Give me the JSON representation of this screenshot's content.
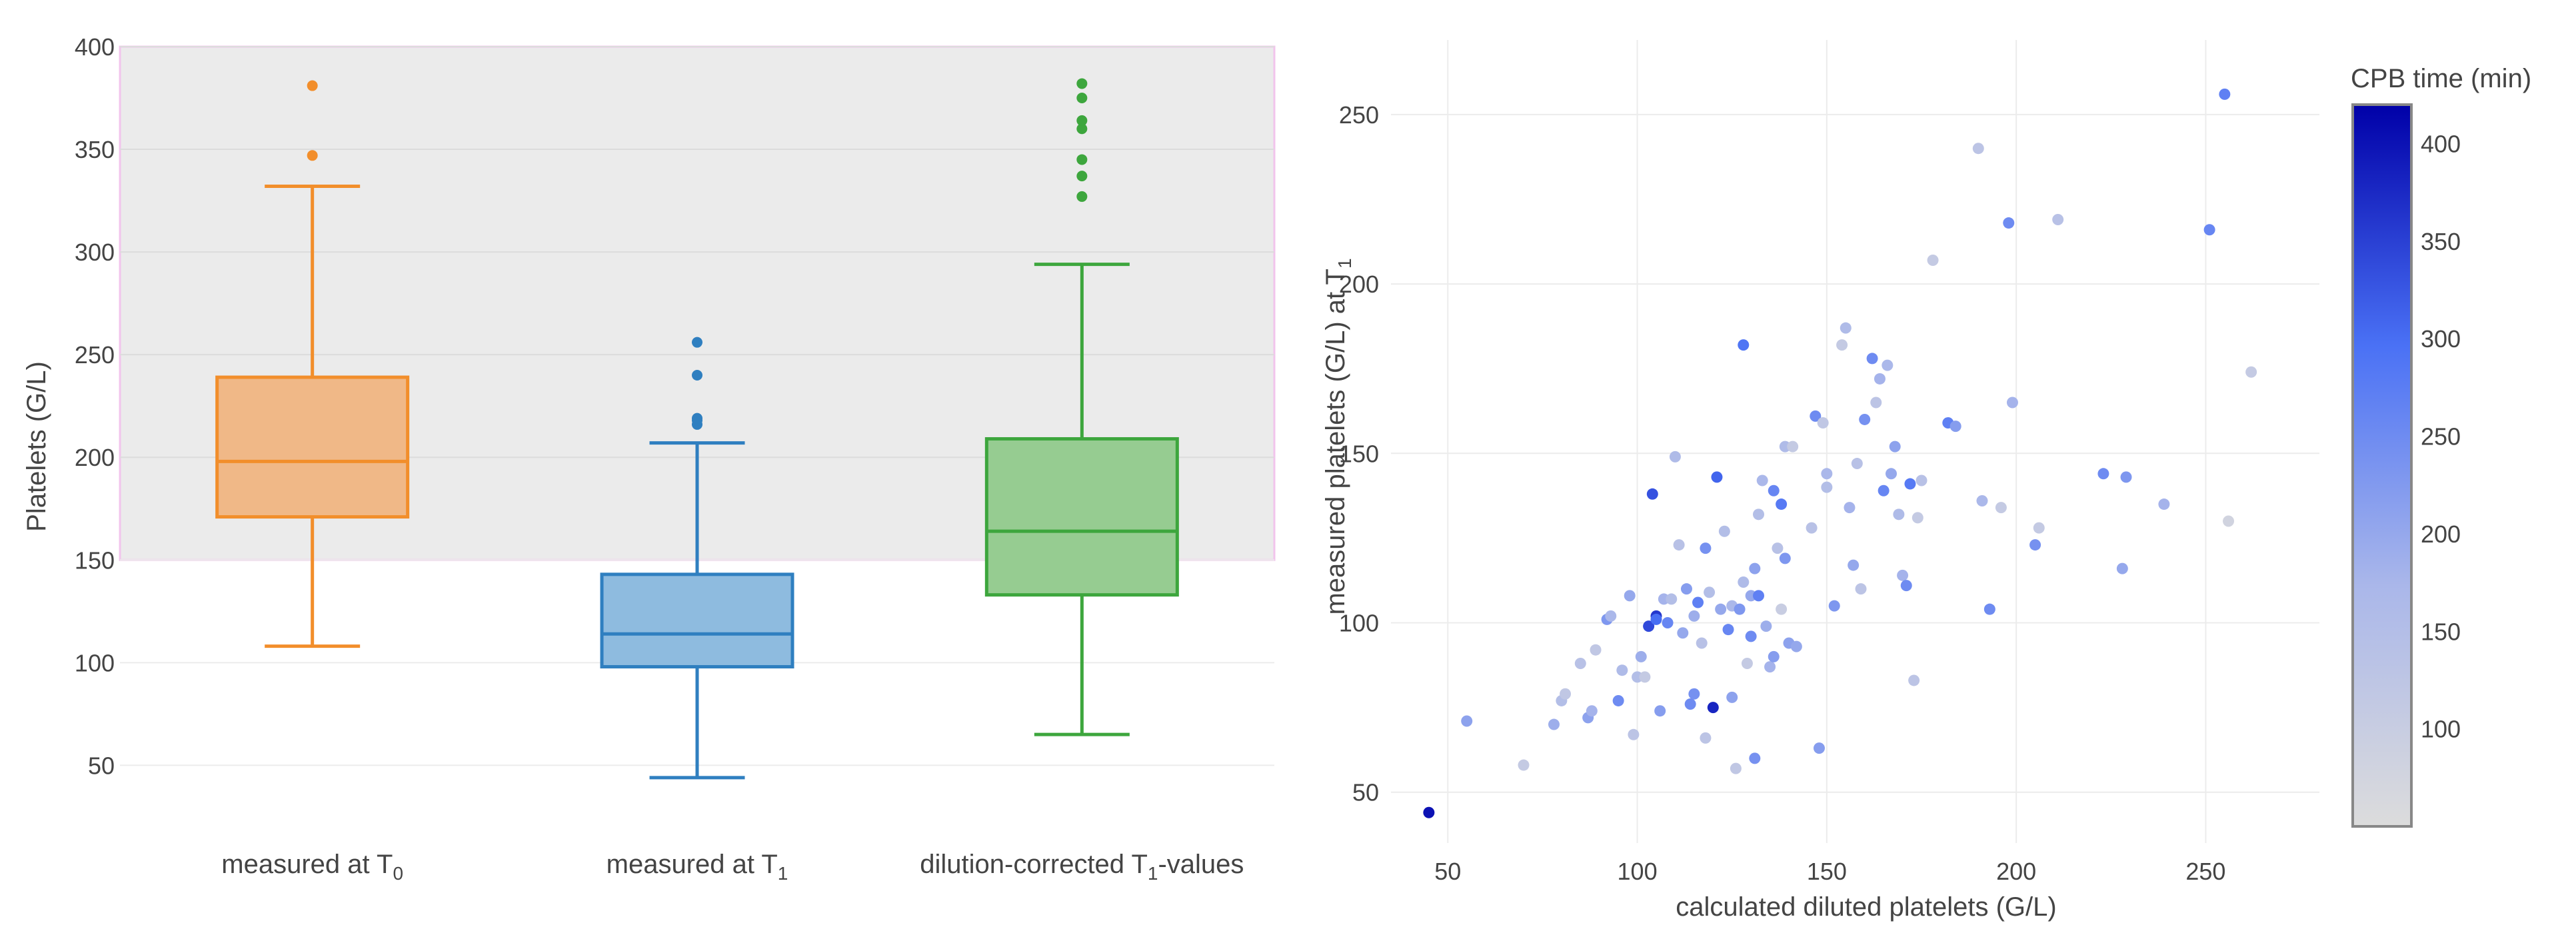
{
  "chart_data": [
    {
      "type": "box",
      "ylabel": "Platelets (G/L)",
      "ylim": [
        30,
        400
      ],
      "yticks": [
        50,
        100,
        150,
        200,
        250,
        300,
        350,
        400
      ],
      "grid": true,
      "shaded_band": {
        "y_from": 150,
        "y_to": 400,
        "color": "#ebebeb",
        "border_color": "#f2c4ec"
      },
      "series": [
        {
          "label_base": "measured at T",
          "label_sub": "0",
          "label_rest": "",
          "color": "#f28e2b",
          "fill": "#f0b887",
          "min": 108,
          "q1": 171,
          "median": 198,
          "q3": 239,
          "max": 332,
          "outliers": [
            347,
            381
          ]
        },
        {
          "label_base": "measured at T",
          "label_sub": "1",
          "label_rest": "",
          "color": "#2f7fc0",
          "fill": "#8ebbdf",
          "min": 44,
          "q1": 98,
          "median": 114,
          "q3": 143,
          "max": 207,
          "outliers": [
            216,
            218,
            219,
            240,
            256
          ]
        },
        {
          "label_base": "dilution-corrected T",
          "label_sub": "1",
          "label_rest": "-values",
          "color": "#3da63d",
          "fill": "#96cc91",
          "min": 65,
          "q1": 133,
          "median": 164,
          "q3": 209,
          "max": 294,
          "outliers": [
            327,
            337,
            345,
            360,
            364,
            375,
            382
          ]
        }
      ]
    },
    {
      "type": "scatter",
      "xlabel": "calculated diluted platelets (G/L)",
      "ylabel_base": "measured platelets (G/L) at T",
      "ylabel_sub": "1",
      "xlim": [
        35,
        280
      ],
      "ylim": [
        35,
        272
      ],
      "xticks": [
        50,
        100,
        150,
        200,
        250
      ],
      "yticks": [
        50,
        100,
        150,
        200,
        250
      ],
      "grid": true,
      "colorbar": {
        "title": "CPB time (min)",
        "range": [
          50,
          420
        ],
        "ticks": [
          100,
          150,
          200,
          250,
          300,
          350,
          400
        ],
        "colors": [
          "#dcdcdc",
          "#aab7ea",
          "#4a71f5",
          "#0000a8"
        ]
      },
      "points": [
        {
          "x": 45,
          "y": 44,
          "c": 400
        },
        {
          "x": 55,
          "y": 71,
          "c": 210
        },
        {
          "x": 70,
          "y": 58,
          "c": 110
        },
        {
          "x": 78,
          "y": 70,
          "c": 190
        },
        {
          "x": 80,
          "y": 77,
          "c": 150
        },
        {
          "x": 81,
          "y": 79,
          "c": 120
        },
        {
          "x": 85,
          "y": 88,
          "c": 140
        },
        {
          "x": 87,
          "y": 72,
          "c": 210
        },
        {
          "x": 88,
          "y": 74,
          "c": 180
        },
        {
          "x": 89,
          "y": 92,
          "c": 120
        },
        {
          "x": 92,
          "y": 101,
          "c": 230
        },
        {
          "x": 93,
          "y": 102,
          "c": 170
        },
        {
          "x": 95,
          "y": 77,
          "c": 250
        },
        {
          "x": 96,
          "y": 86,
          "c": 160
        },
        {
          "x": 98,
          "y": 108,
          "c": 200
        },
        {
          "x": 99,
          "y": 67,
          "c": 130
        },
        {
          "x": 100,
          "y": 84,
          "c": 150
        },
        {
          "x": 101,
          "y": 90,
          "c": 190
        },
        {
          "x": 102,
          "y": 84,
          "c": 110
        },
        {
          "x": 103,
          "y": 99,
          "c": 340
        },
        {
          "x": 104,
          "y": 138,
          "c": 330
        },
        {
          "x": 105,
          "y": 102,
          "c": 360
        },
        {
          "x": 105,
          "y": 101,
          "c": 300
        },
        {
          "x": 106,
          "y": 74,
          "c": 220
        },
        {
          "x": 107,
          "y": 107,
          "c": 180
        },
        {
          "x": 108,
          "y": 100,
          "c": 260
        },
        {
          "x": 109,
          "y": 107,
          "c": 150
        },
        {
          "x": 110,
          "y": 149,
          "c": 160
        },
        {
          "x": 111,
          "y": 123,
          "c": 140
        },
        {
          "x": 112,
          "y": 97,
          "c": 200
        },
        {
          "x": 113,
          "y": 110,
          "c": 220
        },
        {
          "x": 114,
          "y": 76,
          "c": 250
        },
        {
          "x": 115,
          "y": 79,
          "c": 240
        },
        {
          "x": 115,
          "y": 102,
          "c": 190
        },
        {
          "x": 116,
          "y": 106,
          "c": 270
        },
        {
          "x": 117,
          "y": 94,
          "c": 140
        },
        {
          "x": 118,
          "y": 122,
          "c": 240
        },
        {
          "x": 118,
          "y": 66,
          "c": 130
        },
        {
          "x": 119,
          "y": 109,
          "c": 150
        },
        {
          "x": 120,
          "y": 75,
          "c": 380
        },
        {
          "x": 121,
          "y": 143,
          "c": 310
        },
        {
          "x": 122,
          "y": 104,
          "c": 200
        },
        {
          "x": 123,
          "y": 127,
          "c": 150
        },
        {
          "x": 124,
          "y": 98,
          "c": 260
        },
        {
          "x": 125,
          "y": 78,
          "c": 210
        },
        {
          "x": 125,
          "y": 105,
          "c": 170
        },
        {
          "x": 126,
          "y": 57,
          "c": 120
        },
        {
          "x": 127,
          "y": 104,
          "c": 230
        },
        {
          "x": 128,
          "y": 112,
          "c": 160
        },
        {
          "x": 128,
          "y": 182,
          "c": 290
        },
        {
          "x": 129,
          "y": 88,
          "c": 110
        },
        {
          "x": 130,
          "y": 96,
          "c": 250
        },
        {
          "x": 130,
          "y": 108,
          "c": 200
        },
        {
          "x": 131,
          "y": 60,
          "c": 240
        },
        {
          "x": 131,
          "y": 116,
          "c": 210
        },
        {
          "x": 132,
          "y": 108,
          "c": 270
        },
        {
          "x": 132,
          "y": 132,
          "c": 150
        },
        {
          "x": 133,
          "y": 142,
          "c": 170
        },
        {
          "x": 134,
          "y": 99,
          "c": 190
        },
        {
          "x": 135,
          "y": 87,
          "c": 180
        },
        {
          "x": 136,
          "y": 90,
          "c": 220
        },
        {
          "x": 136,
          "y": 139,
          "c": 260
        },
        {
          "x": 137,
          "y": 122,
          "c": 140
        },
        {
          "x": 138,
          "y": 135,
          "c": 280
        },
        {
          "x": 138,
          "y": 104,
          "c": 100
        },
        {
          "x": 139,
          "y": 152,
          "c": 160
        },
        {
          "x": 139,
          "y": 119,
          "c": 230
        },
        {
          "x": 140,
          "y": 94,
          "c": 210
        },
        {
          "x": 141,
          "y": 152,
          "c": 110
        },
        {
          "x": 142,
          "y": 93,
          "c": 200
        },
        {
          "x": 146,
          "y": 128,
          "c": 140
        },
        {
          "x": 147,
          "y": 161,
          "c": 250
        },
        {
          "x": 148,
          "y": 63,
          "c": 220
        },
        {
          "x": 149,
          "y": 159,
          "c": 120
        },
        {
          "x": 150,
          "y": 144,
          "c": 170
        },
        {
          "x": 150,
          "y": 140,
          "c": 150
        },
        {
          "x": 152,
          "y": 105,
          "c": 230
        },
        {
          "x": 154,
          "y": 182,
          "c": 110
        },
        {
          "x": 155,
          "y": 187,
          "c": 160
        },
        {
          "x": 156,
          "y": 134,
          "c": 180
        },
        {
          "x": 157,
          "y": 117,
          "c": 200
        },
        {
          "x": 158,
          "y": 147,
          "c": 140
        },
        {
          "x": 159,
          "y": 110,
          "c": 130
        },
        {
          "x": 160,
          "y": 160,
          "c": 240
        },
        {
          "x": 162,
          "y": 178,
          "c": 250
        },
        {
          "x": 163,
          "y": 165,
          "c": 130
        },
        {
          "x": 164,
          "y": 172,
          "c": 180
        },
        {
          "x": 165,
          "y": 139,
          "c": 260
        },
        {
          "x": 166,
          "y": 176,
          "c": 170
        },
        {
          "x": 167,
          "y": 144,
          "c": 200
        },
        {
          "x": 168,
          "y": 152,
          "c": 210
        },
        {
          "x": 169,
          "y": 132,
          "c": 160
        },
        {
          "x": 170,
          "y": 114,
          "c": 180
        },
        {
          "x": 171,
          "y": 111,
          "c": 250
        },
        {
          "x": 172,
          "y": 141,
          "c": 280
        },
        {
          "x": 173,
          "y": 83,
          "c": 130
        },
        {
          "x": 174,
          "y": 131,
          "c": 110
        },
        {
          "x": 175,
          "y": 142,
          "c": 140
        },
        {
          "x": 178,
          "y": 207,
          "c": 110
        },
        {
          "x": 182,
          "y": 159,
          "c": 270
        },
        {
          "x": 184,
          "y": 158,
          "c": 220
        },
        {
          "x": 190,
          "y": 240,
          "c": 130
        },
        {
          "x": 191,
          "y": 136,
          "c": 170
        },
        {
          "x": 193,
          "y": 104,
          "c": 250
        },
        {
          "x": 196,
          "y": 134,
          "c": 110
        },
        {
          "x": 198,
          "y": 218,
          "c": 250
        },
        {
          "x": 199,
          "y": 165,
          "c": 180
        },
        {
          "x": 205,
          "y": 123,
          "c": 240
        },
        {
          "x": 206,
          "y": 128,
          "c": 110
        },
        {
          "x": 211,
          "y": 219,
          "c": 140
        },
        {
          "x": 223,
          "y": 144,
          "c": 250
        },
        {
          "x": 228,
          "y": 116,
          "c": 200
        },
        {
          "x": 229,
          "y": 143,
          "c": 230
        },
        {
          "x": 239,
          "y": 135,
          "c": 180
        },
        {
          "x": 251,
          "y": 216,
          "c": 260
        },
        {
          "x": 255,
          "y": 256,
          "c": 270
        },
        {
          "x": 256,
          "y": 130,
          "c": 80
        },
        {
          "x": 262,
          "y": 174,
          "c": 110
        }
      ]
    }
  ]
}
